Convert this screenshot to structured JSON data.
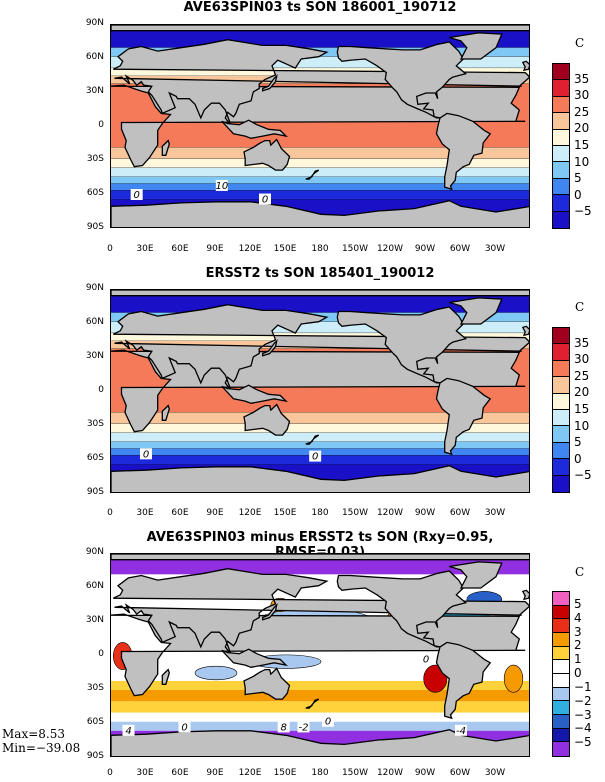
{
  "panels": [
    {
      "title": "AVE63SPIN03 ts SON 186001_190712",
      "unit": "C",
      "levels": [
        "35",
        "30",
        "25",
        "20",
        "15",
        "10",
        "5",
        "0",
        "−5"
      ],
      "colors": [
        "#a0001e",
        "#e02030",
        "#f47a5a",
        "#f9c59b",
        "#fff8dc",
        "#cdeef8",
        "#7fc8f5",
        "#3f86f0",
        "#1c2adc",
        "#1910c8"
      ],
      "contour_labels": [
        "0",
        "10",
        "0"
      ]
    },
    {
      "title": "ERSST2 ts SON 185401_190012",
      "unit": "C",
      "levels": [
        "35",
        "30",
        "25",
        "20",
        "15",
        "10",
        "5",
        "0",
        "−5"
      ],
      "colors": [
        "#a0001e",
        "#e02030",
        "#f47a5a",
        "#f9c59b",
        "#fff8dc",
        "#cdeef8",
        "#7fc8f5",
        "#3f86f0",
        "#1c2adc",
        "#1910c8"
      ],
      "contour_labels": [
        "0",
        "0"
      ]
    },
    {
      "title": "AVE63SPIN03 minus ERSST2 ts SON (Rxy=0.95, RMSE=0.03)",
      "unit": "C",
      "levels": [
        "5",
        "4",
        "3",
        "2",
        "1",
        "0",
        "−1",
        "−2",
        "−3",
        "−4",
        "−5"
      ],
      "colors": [
        "#f060c0",
        "#c80000",
        "#e83018",
        "#f59a00",
        "#ffd23c",
        "#ffffff",
        "#ffffff",
        "#a8c8f0",
        "#30b0e0",
        "#2860c8",
        "#1418a8",
        "#9030e0"
      ],
      "contour_labels": [
        "4",
        "0",
        "8",
        "-2",
        "0",
        "-4",
        "0"
      ]
    }
  ],
  "lat_ticks": [
    "90N",
    "60N",
    "30N",
    "0",
    "30S",
    "60S",
    "90S"
  ],
  "lon_ticks": [
    "0",
    "30E",
    "60E",
    "90E",
    "120E",
    "150E",
    "180",
    "150W",
    "120W",
    "90W",
    "60W",
    "30W"
  ],
  "stats": {
    "max": "Max=8.53",
    "min": "Min=−39.08"
  }
}
